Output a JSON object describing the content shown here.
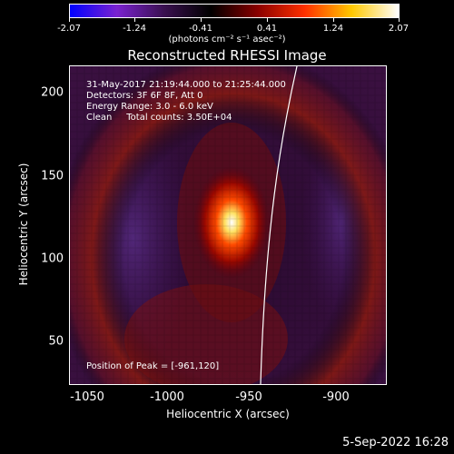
{
  "colorbar": {
    "ticks": [
      "-2.07",
      "-1.24",
      "-0.41",
      "0.41",
      "1.24",
      "2.07"
    ],
    "units": "(photons cm⁻² s⁻¹ asec⁻²)",
    "colors": [
      "#0000ff",
      "#7a22d0",
      "#3a1050",
      "#000000",
      "#8a0000",
      "#ff3000",
      "#ffc800",
      "#ffffff"
    ]
  },
  "title": "Reconstructed RHESSI Image",
  "annotations": {
    "time": "31-May-2017 21:19:44.000 to 21:25:44.000",
    "detectors": "Detectors: 3F 6F 8F, Att 0",
    "energy": "Energy Range: 3.0 - 6.0 keV",
    "clean": "Clean     Total counts: 3.50E+04",
    "peak": "Position of Peak = [-961,120]"
  },
  "axes": {
    "ylabel": "Heliocentric Y (arcsec)",
    "xlabel": "Heliocentric X (arcsec)",
    "yticks": [
      "200",
      "150",
      "100",
      "50"
    ],
    "xticks": [
      "-1050",
      "-1000",
      "-950",
      "-900"
    ]
  },
  "timestamp": "5-Sep-2022 16:28"
}
